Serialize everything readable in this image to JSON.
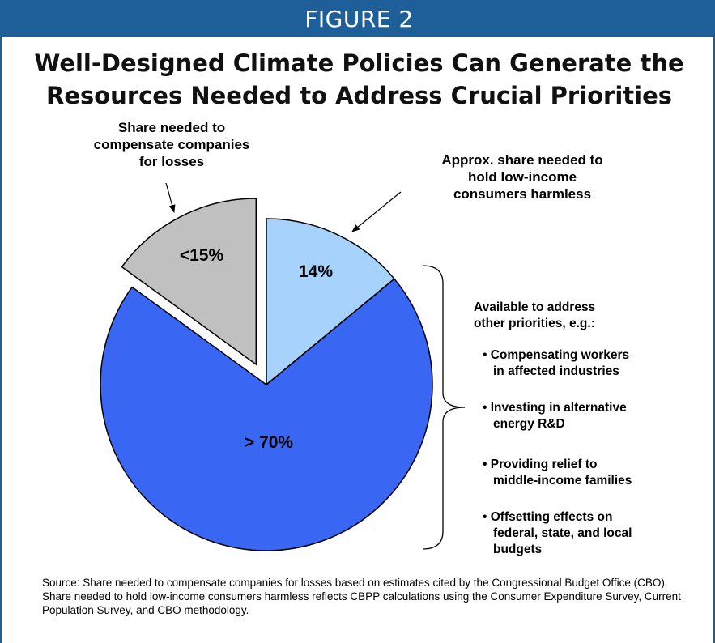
{
  "figure_label": "FIGURE 2",
  "chart_data": {
    "type": "pie",
    "title": "Well-Designed Climate Policies Can Generate the Resources Needed to Address Crucial Priorities",
    "slices": [
      {
        "label": "14%",
        "value": 14,
        "color": "#a6d2fb",
        "exploded": false
      },
      {
        "label": "> 70%",
        "value": 71,
        "color": "#3a66f4",
        "exploded": false
      },
      {
        "label": "<15%",
        "value": 15,
        "color": "#c0c0c0",
        "exploded": true
      }
    ],
    "annotations": {
      "companies": [
        "Share needed to",
        "compensate companies",
        "for losses"
      ],
      "low_income": [
        "Approx. share needed to",
        "hold low-income",
        "consumers harmless"
      ],
      "available_heading": [
        "Available to address",
        "other priorities, e.g.:"
      ],
      "priorities": [
        [
          "• Compensating workers",
          "in affected industries"
        ],
        [
          "• Investing in alternative",
          "energy R&D"
        ],
        [
          "• Providing relief to",
          "middle-income families"
        ],
        [
          "• Offsetting effects on",
          "federal, state, and local",
          "budgets"
        ]
      ]
    }
  },
  "source_text": "Source: Share needed to compensate companies for losses based on estimates cited by the Congressional Budget Office (CBO).  Share needed to hold low-income consumers harmless reflects CBPP calculations using the Consumer Expenditure Survey, Current Population Survey, and CBO methodology."
}
